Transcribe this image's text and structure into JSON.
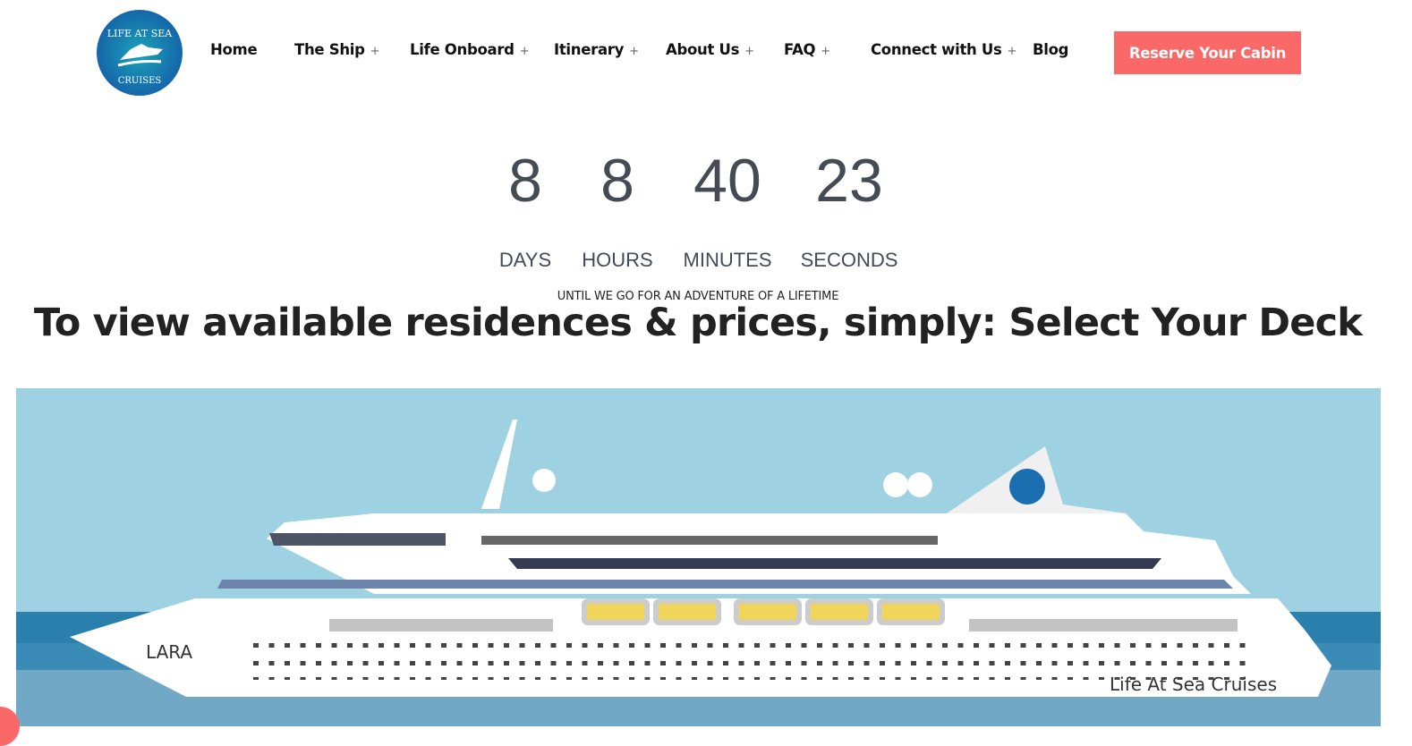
{
  "brand": {
    "logo_text_top": "LIFE AT SEA",
    "logo_text_bottom": "CRUISES",
    "color": "#1b6fb0"
  },
  "nav": {
    "items": [
      {
        "label": "Home",
        "dropdown": false
      },
      {
        "label": "The Ship",
        "dropdown": true
      },
      {
        "label": "Life Onboard",
        "dropdown": true
      },
      {
        "label": "Itinerary",
        "dropdown": true
      },
      {
        "label": "About Us",
        "dropdown": true
      },
      {
        "label": "FAQ",
        "dropdown": true
      },
      {
        "label": "Connect with Us",
        "dropdown": true
      },
      {
        "label": "Blog",
        "dropdown": false
      }
    ],
    "plus": "+",
    "cta": "Reserve Your Cabin",
    "cta_color": "#fb6868"
  },
  "countdown": {
    "days": "8",
    "hours": "8",
    "minutes": "40",
    "seconds": "23",
    "labels": {
      "days": "DAYS",
      "hours": "HOURS",
      "minutes": "MINUTES",
      "seconds": "SECONDS"
    },
    "caption": "UNTIL WE GO FOR AN ADVENTURE OF A LIFETIME"
  },
  "headline": "To view available residences & prices, simply: Select Your Deck",
  "ship": {
    "name": "LARA",
    "hull_text": "Life At Sea Cruises"
  }
}
